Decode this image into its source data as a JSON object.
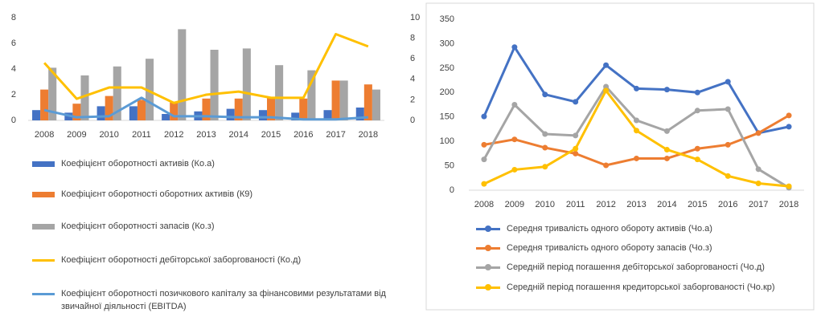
{
  "chart_data": [
    {
      "type": "bar",
      "categories": [
        "2008",
        "2009",
        "2010",
        "2011",
        "2012",
        "2013",
        "2014",
        "2015",
        "2016",
        "2017",
        "2018"
      ],
      "ylim": [
        0,
        8
      ],
      "yticks": [
        0,
        2,
        4,
        6,
        8
      ],
      "y2lim": [
        0,
        10
      ],
      "y2ticks": [
        0,
        2,
        4,
        6,
        8,
        10
      ],
      "grid": false,
      "series": [
        {
          "name": "Коефіцієнт оборотності активів (Ко.а)",
          "color": "#4472c4",
          "values": [
            0.8,
            0.6,
            1.1,
            1.1,
            0.5,
            0.7,
            0.9,
            0.8,
            0.6,
            0.8,
            1.0
          ]
        },
        {
          "name": "Коефіцієнт оборотності оборотних активів (К9)",
          "color": "#ed7d31",
          "values": [
            2.4,
            1.3,
            1.9,
            1.6,
            1.4,
            1.7,
            1.7,
            1.8,
            1.7,
            3.1,
            2.8
          ]
        },
        {
          "name": "Коефіцієнт оборотності запасів (Ко.з)",
          "color": "#a5a5a5",
          "values": [
            4.1,
            3.5,
            4.2,
            4.8,
            7.1,
            5.5,
            5.6,
            4.3,
            3.9,
            3.1,
            2.4
          ]
        },
        {
          "name": "Коефіцієнт оборотності дебіторської заборгованості (Ко.д)",
          "color": "#ffc000",
          "type": "line",
          "axis": "y2",
          "values": [
            5.6,
            2.1,
            3.2,
            3.2,
            1.7,
            2.5,
            2.8,
            2.2,
            2.2,
            8.4,
            7.2
          ]
        },
        {
          "name": "Коефіцієнт оборотності позичкового капіталу за фінансовими результатами від звичайної діяльності (EBITDA)",
          "color": "#5b9bd5",
          "type": "line",
          "axis": "y2",
          "values": [
            1.0,
            0.3,
            0.4,
            2.2,
            0.4,
            0.4,
            0.3,
            0.3,
            0.1,
            0.1,
            0.3
          ]
        }
      ]
    },
    {
      "type": "line",
      "categories": [
        "2008",
        "2009",
        "2010",
        "2011",
        "2012",
        "2013",
        "2014",
        "2015",
        "2016",
        "2017",
        "2018"
      ],
      "ylim": [
        0,
        350
      ],
      "yticks": [
        0,
        50,
        100,
        150,
        200,
        250,
        300,
        350
      ],
      "grid": false,
      "markers": true,
      "series": [
        {
          "name": "Середня тривалість одного обороту активів (Чо.а)",
          "color": "#4472c4",
          "values": [
            151,
            293,
            196,
            181,
            256,
            208,
            206,
            200,
            222,
            117,
            130
          ]
        },
        {
          "name": "Середня тривалість одного обороту запасів (Чо.з)",
          "color": "#ed7d31",
          "values": [
            93,
            104,
            87,
            75,
            51,
            65,
            65,
            85,
            93,
            117,
            153
          ]
        },
        {
          "name": "Середній період погашення дебіторської заборгованості (Чо.д)",
          "color": "#a5a5a5",
          "values": [
            63,
            175,
            115,
            112,
            212,
            143,
            121,
            163,
            166,
            43,
            5
          ]
        },
        {
          "name": "Середній період погашення кредиторської заборгованості (Чо.кр)",
          "color": "#ffc000",
          "values": [
            13,
            42,
            48,
            85,
            204,
            122,
            83,
            63,
            29,
            14,
            8
          ]
        }
      ]
    }
  ]
}
